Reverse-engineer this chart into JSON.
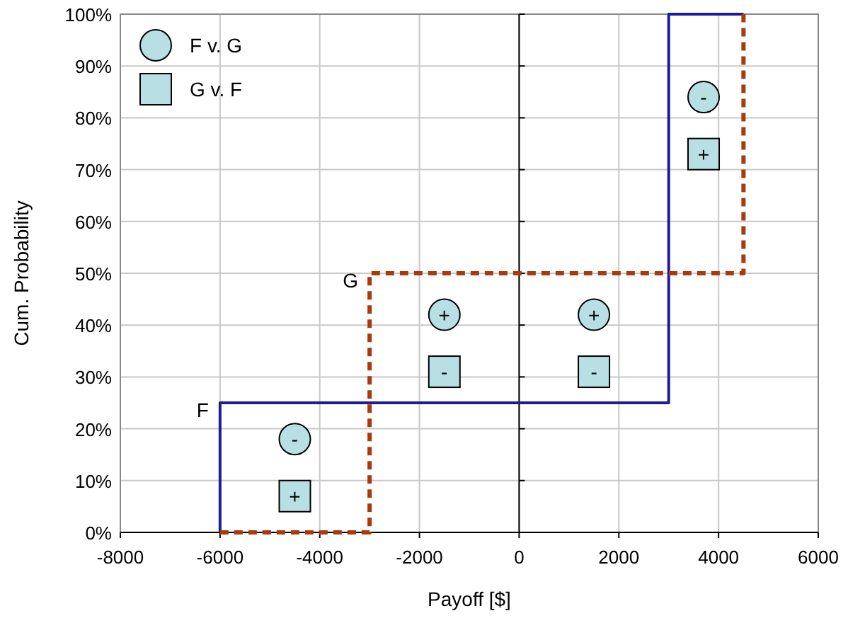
{
  "chart_data": {
    "type": "line",
    "xlabel": "Payoff [$]",
    "ylabel": "Cum. Probability",
    "xlim": [
      -8000,
      6000
    ],
    "ylim": [
      0,
      100
    ],
    "xticks": [
      -8000,
      -6000,
      -4000,
      -2000,
      0,
      2000,
      4000,
      6000
    ],
    "yticks": [
      {
        "value": 0,
        "label": "0%"
      },
      {
        "value": 10,
        "label": "10%"
      },
      {
        "value": 20,
        "label": "20%"
      },
      {
        "value": 30,
        "label": "30%"
      },
      {
        "value": 40,
        "label": "40%"
      },
      {
        "value": 50,
        "label": "50%"
      },
      {
        "value": 60,
        "label": "60%"
      },
      {
        "value": 70,
        "label": "70%"
      },
      {
        "value": 80,
        "label": "80%"
      },
      {
        "value": 90,
        "label": "90%"
      },
      {
        "value": 100,
        "label": "100%"
      }
    ],
    "grid": true,
    "legend": "top left",
    "series": [
      {
        "name": "F",
        "color": "#1c1c9a",
        "line_style": "solid",
        "marker": "none",
        "x": [
          -6000,
          -6000,
          3000,
          3000,
          4500
        ],
        "values": [
          0,
          25,
          25,
          100,
          100
        ]
      },
      {
        "name": "G",
        "color": "#a83a10",
        "line_style": "dashed",
        "marker": "none",
        "x": [
          -6000,
          -3000,
          -3000,
          4500,
          4500
        ],
        "values": [
          0,
          0,
          50,
          50,
          100
        ]
      },
      {
        "name": "F v. G",
        "type": "scatter",
        "color": "#b8e0e4",
        "marker": "circle",
        "x": [
          -4500,
          -1500,
          1500,
          3700
        ],
        "values": [
          18,
          42,
          42,
          84
        ],
        "value_labels": [
          "-",
          "+",
          "+",
          "-"
        ]
      },
      {
        "name": "G v. F",
        "type": "scatter",
        "color": "#b8e0e4",
        "marker": "square",
        "x": [
          -4500,
          -1500,
          1500,
          3700
        ],
        "values": [
          7,
          31,
          31,
          73
        ],
        "value_labels": [
          "+",
          "-",
          "-",
          "+"
        ]
      }
    ]
  }
}
